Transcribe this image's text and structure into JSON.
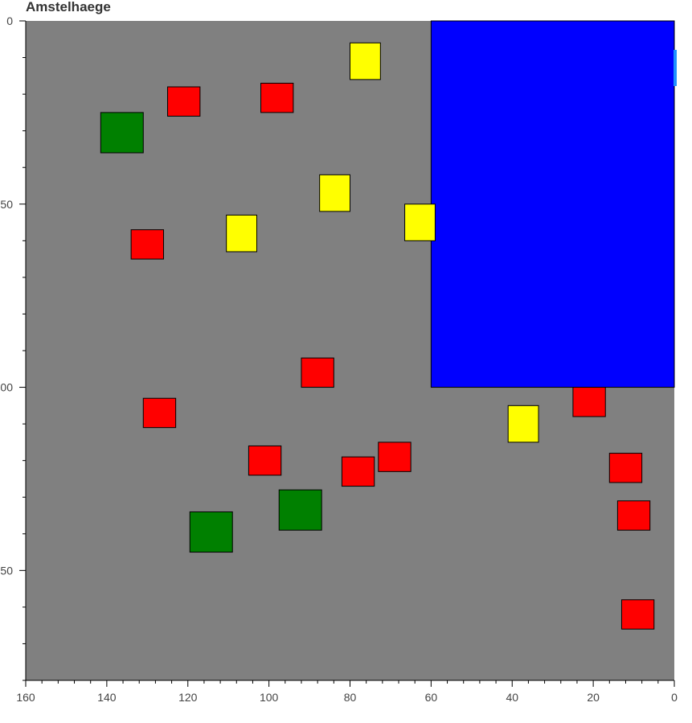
{
  "chart_data": {
    "type": "scatter",
    "title": "Amstelhaege",
    "xlabel": "",
    "ylabel": "",
    "xlim": [
      160,
      0
    ],
    "ylim": [
      180,
      0
    ],
    "x_reversed": true,
    "y_reversed": true,
    "x_ticks": [
      160,
      140,
      120,
      100,
      80,
      60,
      40,
      20,
      0
    ],
    "x_tick_labels": [
      "160",
      "140",
      "120",
      "100",
      "80",
      "60",
      "40",
      "20",
      "0"
    ],
    "y_ticks": [
      0,
      50,
      100,
      150
    ],
    "y_tick_labels": [
      "0",
      "50",
      "100",
      "150"
    ],
    "grid": false,
    "plot_background": "#808080",
    "colors": {
      "red": "#ff0000",
      "yellow": "#ffff00",
      "green": "#008000",
      "blue": "#0000ff",
      "edge": "#000000"
    },
    "regions": [
      {
        "kind": "water",
        "color": "blue",
        "x0": 60,
        "x1": 0,
        "y0": 0,
        "y1": 100
      }
    ],
    "houses": [
      {
        "color": "yellow",
        "x0": 80,
        "x1": 72.5,
        "y0": 6,
        "y1": 16
      },
      {
        "color": "red",
        "x0": 125,
        "x1": 117,
        "y0": 18,
        "y1": 26
      },
      {
        "color": "red",
        "x0": 102,
        "x1": 94,
        "y0": 17,
        "y1": 25
      },
      {
        "color": "green",
        "x0": 141.5,
        "x1": 131,
        "y0": 25,
        "y1": 36
      },
      {
        "color": "yellow",
        "x0": 87.5,
        "x1": 80,
        "y0": 42,
        "y1": 52
      },
      {
        "color": "yellow",
        "x0": 66.5,
        "x1": 59,
        "y0": 50,
        "y1": 60
      },
      {
        "color": "yellow",
        "x0": 110.5,
        "x1": 103,
        "y0": 53,
        "y1": 63
      },
      {
        "color": "red",
        "x0": 134,
        "x1": 126,
        "y0": 57,
        "y1": 65
      },
      {
        "color": "red",
        "x0": 92,
        "x1": 84,
        "y0": 92,
        "y1": 100
      },
      {
        "color": "red",
        "x0": 25,
        "x1": 17,
        "y0": 100,
        "y1": 108
      },
      {
        "color": "red",
        "x0": 131,
        "x1": 123,
        "y0": 103,
        "y1": 111
      },
      {
        "color": "yellow",
        "x0": 41,
        "x1": 33.5,
        "y0": 105,
        "y1": 115
      },
      {
        "color": "red",
        "x0": 73,
        "x1": 65,
        "y0": 115,
        "y1": 123
      },
      {
        "color": "red",
        "x0": 105,
        "x1": 97,
        "y0": 116,
        "y1": 124
      },
      {
        "color": "red",
        "x0": 16,
        "x1": 8,
        "y0": 118,
        "y1": 126
      },
      {
        "color": "red",
        "x0": 82,
        "x1": 74,
        "y0": 119,
        "y1": 127
      },
      {
        "color": "green",
        "x0": 97.5,
        "x1": 87,
        "y0": 128,
        "y1": 139
      },
      {
        "color": "red",
        "x0": 14,
        "x1": 6,
        "y0": 131,
        "y1": 139
      },
      {
        "color": "green",
        "x0": 119.5,
        "x1": 109,
        "y0": 134,
        "y1": 145
      },
      {
        "color": "red",
        "x0": 13,
        "x1": 5,
        "y0": 158,
        "y1": 166
      }
    ]
  }
}
